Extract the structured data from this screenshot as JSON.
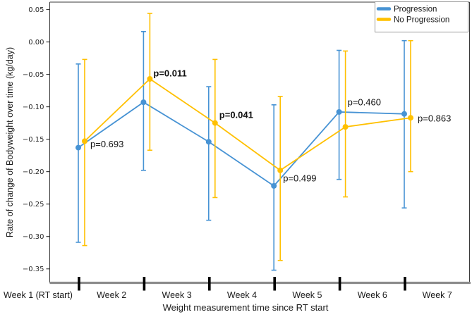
{
  "figure": {
    "xlabel": "Weight measurement time since RT start",
    "ylabel": "Rate of change of Bodyweight over time (kg/day)"
  },
  "colors": {
    "progression": "#4793d4",
    "no_progression": "#ffc000",
    "axis_line": "#8c8c8c",
    "x_tick": "#000000",
    "text": "#1a1a1a"
  },
  "chart_data": {
    "type": "line",
    "title": "",
    "xlabel": "Weight measurement time since RT start",
    "ylabel": "Rate of change of Bodyweight over time (kg/day)",
    "grid": false,
    "legend_position": "upper-right",
    "ylim": [
      -0.37,
      0.06
    ],
    "yticks": [
      0.05,
      0.0,
      -0.05,
      -0.1,
      -0.15,
      -0.2,
      -0.25,
      -0.3,
      -0.35
    ],
    "x_bin_labels": [
      "Week 1 (RT start)",
      "Week 2",
      "Week 3",
      "Week 4",
      "Week 5",
      "Week 6",
      "Week 7"
    ],
    "x_points": [
      "Week 2",
      "Week 3",
      "Week 4",
      "Week 5",
      "Week 6",
      "Week 7"
    ],
    "series": [
      {
        "name": "Progression",
        "color": "#4793d4",
        "values": [
          -0.163,
          -0.093,
          -0.154,
          -0.222,
          -0.108,
          -0.111
        ],
        "ci_upper": [
          -0.034,
          0.016,
          -0.069,
          -0.097,
          -0.013,
          0.002
        ],
        "ci_lower": [
          -0.309,
          -0.198,
          -0.275,
          -0.352,
          -0.212,
          -0.256
        ]
      },
      {
        "name": "No Progression",
        "color": "#ffc000",
        "values": [
          -0.153,
          -0.057,
          -0.125,
          -0.198,
          -0.131,
          -0.117
        ],
        "ci_upper": [
          -0.027,
          0.044,
          -0.027,
          -0.084,
          -0.014,
          0.002
        ],
        "ci_lower": [
          -0.314,
          -0.167,
          -0.24,
          -0.337,
          -0.239,
          -0.2
        ]
      }
    ],
    "annotations": [
      {
        "text": "p=0.693",
        "bold": false,
        "at": "Week 2"
      },
      {
        "text": "p=0.011",
        "bold": true,
        "at": "Week 3"
      },
      {
        "text": "p=0.041",
        "bold": true,
        "at": "Week 4"
      },
      {
        "text": "p=0.499",
        "bold": false,
        "at": "Week 5"
      },
      {
        "text": "p=0.460",
        "bold": false,
        "at": "Week 6"
      },
      {
        "text": "p=0.863",
        "bold": false,
        "at": "Week 7"
      }
    ],
    "legend": {
      "entries": [
        "Progression",
        "No Progression"
      ]
    }
  }
}
